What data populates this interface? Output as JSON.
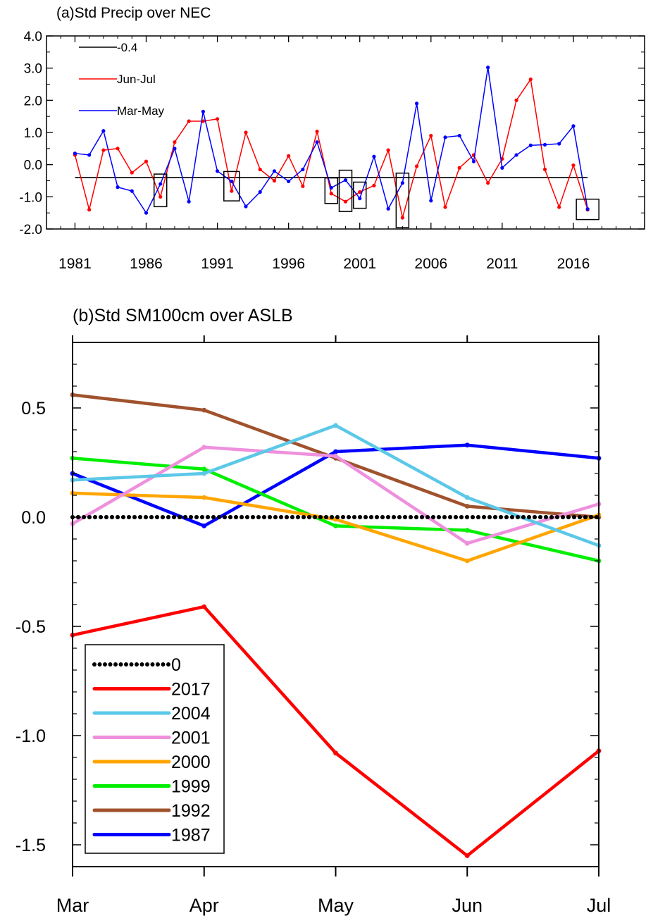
{
  "chart_data": [
    {
      "type": "line",
      "title": "(a)Std Precip over NEC",
      "xlim": [
        1979,
        2021
      ],
      "ylim": [
        -2.0,
        4.0
      ],
      "xticks": [
        1981,
        1986,
        1991,
        1996,
        2001,
        2006,
        2011,
        2016
      ],
      "yticks": [
        "4.0",
        "3.0",
        "2.0",
        "1.0",
        "0.0",
        "-1.0",
        "-2.0"
      ],
      "legend_position": "top-left",
      "series": [
        {
          "name": "-0.4",
          "color": "#000000",
          "x": [
            1981,
            2017
          ],
          "values": [
            -0.4,
            -0.4
          ]
        },
        {
          "name": "Jun-Jul",
          "color": "#ff0000",
          "x": [
            1981,
            1982,
            1983,
            1984,
            1985,
            1986,
            1987,
            1988,
            1989,
            1990,
            1991,
            1992,
            1993,
            1994,
            1995,
            1996,
            1997,
            1998,
            1999,
            2000,
            2001,
            2002,
            2003,
            2004,
            2005,
            2006,
            2007,
            2008,
            2009,
            2010,
            2011,
            2012,
            2013,
            2014,
            2015,
            2016,
            2017
          ],
          "values": [
            0.3,
            -1.4,
            0.45,
            0.5,
            -0.25,
            0.1,
            -1.0,
            0.7,
            1.35,
            1.35,
            1.42,
            -0.82,
            1.0,
            -0.15,
            -0.5,
            0.27,
            -0.67,
            1.03,
            -0.9,
            -1.15,
            -0.85,
            -0.65,
            0.45,
            -1.65,
            -0.05,
            0.9,
            -1.32,
            -0.1,
            0.3,
            -0.57,
            0.18,
            2.0,
            2.65,
            -0.15,
            -1.32,
            -0.02,
            -1.4
          ]
        },
        {
          "name": "Mar-May",
          "color": "#0000ff",
          "x": [
            1981,
            1982,
            1983,
            1984,
            1985,
            1986,
            1987,
            1988,
            1989,
            1990,
            1991,
            1992,
            1993,
            1994,
            1995,
            1996,
            1997,
            1998,
            1999,
            2000,
            2001,
            2002,
            2003,
            2004,
            2005,
            2006,
            2007,
            2008,
            2009,
            2010,
            2011,
            2012,
            2013,
            2014,
            2015,
            2016,
            2017
          ],
          "values": [
            0.35,
            0.3,
            1.05,
            -0.7,
            -0.82,
            -1.5,
            -0.6,
            0.5,
            -1.15,
            1.65,
            -0.2,
            -0.52,
            -1.3,
            -0.85,
            -0.2,
            -0.52,
            -0.15,
            0.7,
            -0.72,
            -0.48,
            -1.05,
            0.25,
            -1.37,
            -0.57,
            1.9,
            -1.12,
            0.85,
            0.9,
            0.1,
            3.02,
            -0.1,
            0.3,
            0.6,
            0.62,
            0.65,
            1.2,
            -1.38
          ]
        }
      ],
      "highlight_boxes_years": [
        1987,
        1992,
        1999,
        2000,
        2001,
        2004,
        2017
      ]
    },
    {
      "type": "line",
      "title": "(b)Std SM100cm over ASLB",
      "categories": [
        "Mar",
        "Apr",
        "May",
        "Jun",
        "Jul"
      ],
      "ylim": [
        -1.6,
        0.8
      ],
      "yticks": [
        "0.5",
        "0.0",
        "-0.5",
        "-1.0",
        "-1.5"
      ],
      "legend_position": "bottom-left",
      "series": [
        {
          "name": "0",
          "color": "#000000",
          "dotted": true,
          "values": [
            0,
            0,
            0,
            0,
            0
          ]
        },
        {
          "name": "2017",
          "color": "#ff0000",
          "values": [
            -0.54,
            -0.41,
            -1.08,
            -1.55,
            -1.07
          ]
        },
        {
          "name": "2004",
          "color": "#5bc8e8",
          "values": [
            0.17,
            0.2,
            0.42,
            0.09,
            -0.13
          ]
        },
        {
          "name": "2001",
          "color": "#ee90dd",
          "values": [
            -0.03,
            0.32,
            0.28,
            -0.12,
            0.06
          ]
        },
        {
          "name": "2000",
          "color": "#ffa500",
          "values": [
            0.11,
            0.09,
            -0.01,
            -0.2,
            0.01
          ]
        },
        {
          "name": "1999",
          "color": "#00ee00",
          "values": [
            0.27,
            0.22,
            -0.04,
            -0.06,
            -0.2
          ]
        },
        {
          "name": "1992",
          "color": "#a0522d",
          "values": [
            0.56,
            0.49,
            0.27,
            0.05,
            0.0
          ]
        },
        {
          "name": "1987",
          "color": "#0000ff",
          "values": [
            0.2,
            -0.04,
            0.3,
            0.33,
            0.27
          ]
        }
      ]
    }
  ]
}
